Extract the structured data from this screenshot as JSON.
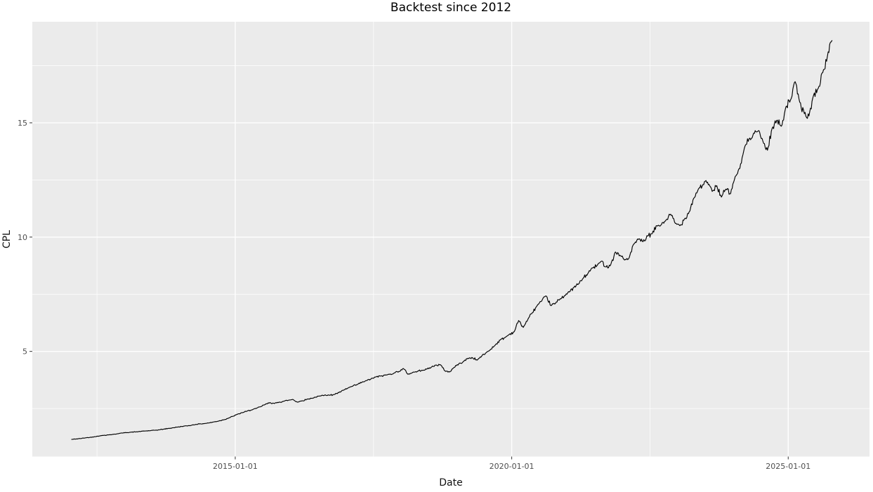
{
  "style": {
    "outer_background": "#ffffff",
    "panel_background": "#ebebeb",
    "grid_color": "#ffffff",
    "tick_mark_color": "#333333",
    "tick_label_color": "#4d4d4d",
    "title_color": "#000000",
    "axis_title_color": "#111111",
    "line_color": "#000000"
  },
  "chart_data": {
    "type": "line",
    "title": "Backtest since 2012",
    "xlabel": "Date",
    "ylabel": "CPL",
    "legend": "none",
    "grid": "white major and minor gridlines on gray panel (ggplot2 style)",
    "x_major_breaks": [
      "2015-01-01",
      "2020-01-01",
      "2025-01-01"
    ],
    "x_minor_breaks": [
      "2012-07-01",
      "2017-07-01",
      "2022-07-01"
    ],
    "y_major_breaks": [
      5,
      10,
      15
    ],
    "y_minor_breaks": [
      2.5,
      7.5,
      12.5,
      17.5
    ],
    "x_tick_labels": [
      "2015-01-01",
      "2020-01-01",
      "2025-01-01"
    ],
    "y_tick_labels": [
      "5",
      "10",
      "15"
    ],
    "xlim_frac": [
      2011.33,
      2026.47
    ],
    "ylim": [
      0.4,
      19.42
    ],
    "series": [
      {
        "name": "CPL",
        "color": "#000000",
        "start": "2012-01",
        "frequency": "monthly",
        "values": [
          1.15,
          1.17,
          1.19,
          1.22,
          1.24,
          1.27,
          1.3,
          1.33,
          1.35,
          1.37,
          1.4,
          1.43,
          1.45,
          1.47,
          1.48,
          1.5,
          1.52,
          1.53,
          1.55,
          1.57,
          1.6,
          1.63,
          1.66,
          1.69,
          1.72,
          1.74,
          1.77,
          1.81,
          1.83,
          1.85,
          1.88,
          1.92,
          1.96,
          2.01,
          2.08,
          2.16,
          2.25,
          2.32,
          2.38,
          2.44,
          2.5,
          2.58,
          2.68,
          2.76,
          2.72,
          2.78,
          2.82,
          2.86,
          2.9,
          2.78,
          2.84,
          2.9,
          2.95,
          3.0,
          3.05,
          3.1,
          3.08,
          3.12,
          3.2,
          3.3,
          3.4,
          3.48,
          3.55,
          3.65,
          3.72,
          3.8,
          3.88,
          3.92,
          3.96,
          4.0,
          4.06,
          4.12,
          4.25,
          4.0,
          4.08,
          4.12,
          4.18,
          4.22,
          4.3,
          4.4,
          4.42,
          4.15,
          4.1,
          4.3,
          4.45,
          4.55,
          4.7,
          4.72,
          4.62,
          4.8,
          4.95,
          5.1,
          5.3,
          5.5,
          5.6,
          5.75,
          5.85,
          6.35,
          6.05,
          6.4,
          6.7,
          7.0,
          7.2,
          7.42,
          7.0,
          7.1,
          7.3,
          7.45,
          7.6,
          7.8,
          7.95,
          8.2,
          8.4,
          8.65,
          8.75,
          8.95,
          8.7,
          8.8,
          9.35,
          9.2,
          9.0,
          9.1,
          9.7,
          9.9,
          9.8,
          10.05,
          10.15,
          10.5,
          10.55,
          10.75,
          11.0,
          10.6,
          10.5,
          10.8,
          11.1,
          11.7,
          12.1,
          12.3,
          12.4,
          12.0,
          12.25,
          11.75,
          12.1,
          11.9,
          12.65,
          13.0,
          13.9,
          14.3,
          14.55,
          14.65,
          14.2,
          13.8,
          14.75,
          15.1,
          14.85,
          15.7,
          16.0,
          16.8,
          15.9,
          15.4,
          15.3,
          16.2,
          16.5,
          17.2,
          17.9,
          18.6
        ]
      }
    ]
  }
}
